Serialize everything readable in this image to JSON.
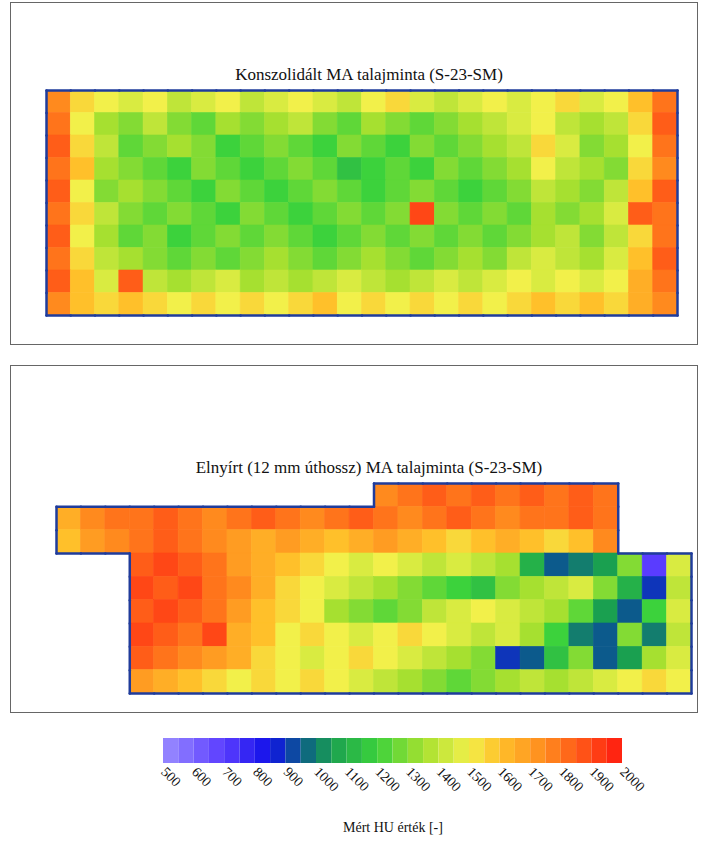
{
  "chart_data": {
    "type": "heatmap",
    "tick_labels": false,
    "panels": [
      {
        "title": "Konszolidált MA talajminta (S-23-SM)",
        "values": [
          [
            1750,
            1550,
            1500,
            1450,
            1500,
            1400,
            1450,
            1500,
            1400,
            1450,
            1500,
            1450,
            1400,
            1500,
            1550,
            1450,
            1400,
            1450,
            1500,
            1450,
            1500,
            1550,
            1450,
            1500,
            1600,
            1800
          ],
          [
            1800,
            1500,
            1350,
            1300,
            1400,
            1300,
            1250,
            1350,
            1300,
            1350,
            1400,
            1300,
            1250,
            1350,
            1300,
            1250,
            1300,
            1350,
            1400,
            1450,
            1500,
            1400,
            1350,
            1400,
            1550,
            1850
          ],
          [
            1850,
            1550,
            1400,
            1250,
            1300,
            1350,
            1300,
            1200,
            1250,
            1300,
            1250,
            1200,
            1300,
            1250,
            1200,
            1300,
            1250,
            1300,
            1350,
            1400,
            1550,
            1450,
            1300,
            1350,
            1500,
            1800
          ],
          [
            1800,
            1600,
            1350,
            1300,
            1250,
            1200,
            1300,
            1250,
            1200,
            1250,
            1300,
            1250,
            1150,
            1200,
            1250,
            1200,
            1300,
            1250,
            1300,
            1350,
            1500,
            1400,
            1350,
            1300,
            1550,
            1750
          ],
          [
            1850,
            1500,
            1300,
            1350,
            1300,
            1250,
            1200,
            1300,
            1250,
            1200,
            1250,
            1300,
            1250,
            1200,
            1250,
            1300,
            1250,
            1200,
            1250,
            1300,
            1400,
            1350,
            1300,
            1400,
            1600,
            1850
          ],
          [
            1800,
            1550,
            1400,
            1300,
            1250,
            1300,
            1250,
            1200,
            1300,
            1250,
            1200,
            1250,
            1300,
            1250,
            1300,
            1900,
            1300,
            1250,
            1300,
            1250,
            1350,
            1300,
            1350,
            1450,
            1850,
            1800
          ],
          [
            1850,
            1500,
            1350,
            1250,
            1300,
            1200,
            1250,
            1300,
            1250,
            1300,
            1250,
            1200,
            1250,
            1300,
            1250,
            1300,
            1250,
            1300,
            1250,
            1300,
            1350,
            1400,
            1300,
            1400,
            1550,
            1800
          ],
          [
            1800,
            1550,
            1400,
            1350,
            1300,
            1250,
            1300,
            1250,
            1300,
            1350,
            1300,
            1250,
            1300,
            1350,
            1300,
            1250,
            1300,
            1350,
            1300,
            1400,
            1450,
            1400,
            1350,
            1450,
            1600,
            1850
          ],
          [
            1850,
            1600,
            1450,
            1850,
            1400,
            1350,
            1400,
            1450,
            1350,
            1400,
            1350,
            1400,
            1450,
            1400,
            1350,
            1400,
            1450,
            1400,
            1450,
            1500,
            1450,
            1500,
            1450,
            1500,
            1650,
            1800
          ],
          [
            1750,
            1600,
            1550,
            1600,
            1550,
            1500,
            1550,
            1500,
            1550,
            1500,
            1550,
            1600,
            1500,
            1550,
            1500,
            1550,
            1500,
            1550,
            1500,
            1550,
            1600,
            1550,
            1600,
            1550,
            1650,
            1750
          ]
        ]
      },
      {
        "title": "Elnyírt (12 mm úthossz) MA talajminta (S-23-SM)",
        "values": [
          [
            null,
            null,
            null,
            null,
            null,
            null,
            null,
            null,
            null,
            null,
            null,
            null,
            null,
            1750,
            1800,
            1850,
            1800,
            1850,
            1800,
            1850,
            1800,
            1850,
            1800,
            null,
            null,
            null
          ],
          [
            1650,
            1750,
            1800,
            1800,
            1850,
            1800,
            1750,
            1800,
            1850,
            1800,
            1750,
            1800,
            1850,
            1800,
            1750,
            1800,
            1850,
            1800,
            1750,
            1800,
            1800,
            1850,
            1800,
            null,
            null,
            null
          ],
          [
            1600,
            1700,
            1750,
            1800,
            1850,
            1800,
            1750,
            1700,
            1650,
            1700,
            1650,
            1600,
            1650,
            1700,
            1650,
            1600,
            1550,
            1600,
            1650,
            1600,
            1550,
            1600,
            1750,
            null,
            null,
            null
          ],
          [
            null,
            null,
            null,
            1850,
            1900,
            1850,
            1800,
            1700,
            1650,
            1600,
            1550,
            1500,
            1450,
            1500,
            1450,
            1400,
            1450,
            1400,
            1350,
            1100,
            950,
            1000,
            1050,
            1300,
            700,
            1450
          ],
          [
            null,
            null,
            null,
            1900,
            1850,
            1900,
            1800,
            1750,
            1650,
            1550,
            1500,
            1450,
            1400,
            1350,
            1300,
            1250,
            1200,
            1150,
            1300,
            1350,
            1400,
            1450,
            1300,
            1100,
            900,
            1400
          ],
          [
            null,
            null,
            null,
            1850,
            1900,
            1850,
            1800,
            1700,
            1600,
            1550,
            1500,
            1350,
            1300,
            1250,
            1300,
            1400,
            1450,
            1500,
            1450,
            1400,
            1350,
            1250,
            1050,
            950,
            1200,
            1450
          ],
          [
            null,
            null,
            null,
            1900,
            1850,
            1800,
            1900,
            1650,
            1600,
            1500,
            1550,
            1500,
            1450,
            1500,
            1550,
            1500,
            1450,
            1400,
            1450,
            1350,
            1200,
            1000,
            950,
            1300,
            1000,
            1400
          ],
          [
            null,
            null,
            null,
            1850,
            1800,
            1750,
            1700,
            1650,
            1550,
            1500,
            1450,
            1500,
            1550,
            1500,
            1450,
            1400,
            1350,
            1300,
            900,
            950,
            1150,
            1300,
            950,
            1050,
            1350,
            1450
          ],
          [
            null,
            null,
            null,
            1700,
            1650,
            1600,
            1550,
            1500,
            1550,
            1500,
            1550,
            1500,
            1450,
            1400,
            1350,
            1300,
            1250,
            1300,
            1350,
            1400,
            1350,
            1400,
            1450,
            1500,
            1550,
            1500
          ]
        ]
      }
    ],
    "colorbar": {
      "range": [
        500,
        2000
      ],
      "ticks": [
        500,
        600,
        700,
        800,
        900,
        1000,
        1100,
        1200,
        1300,
        1400,
        1500,
        1600,
        1700,
        1800,
        1900,
        2000
      ],
      "label": "Mért HU érték [-]"
    }
  }
}
